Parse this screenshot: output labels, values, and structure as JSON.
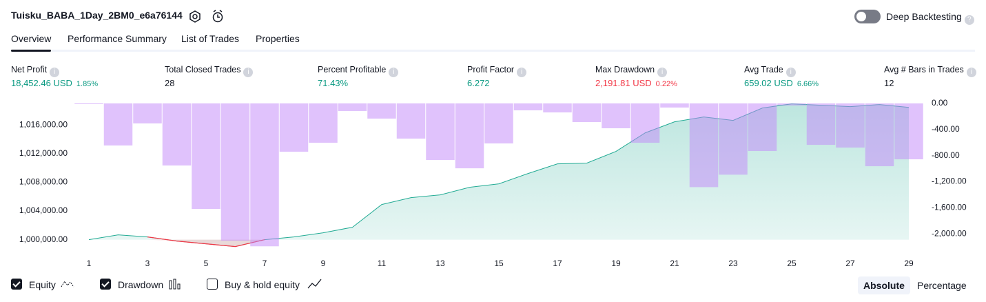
{
  "header": {
    "title": "Tuisku_BABA_1Day_2BM0_e6a76144",
    "deep_backtesting": "Deep Backtesting"
  },
  "tabs": [
    "Overview",
    "Performance Summary",
    "List of Trades",
    "Properties"
  ],
  "metrics": [
    {
      "label": "Net Profit",
      "value": "18,452.46 USD",
      "percent": "1.85%"
    },
    {
      "label": "Total Closed Trades",
      "value": "28"
    },
    {
      "label": "Percent Profitable",
      "value": "71.43%"
    },
    {
      "label": "Profit Factor",
      "value": "6.272"
    },
    {
      "label": "Max Drawdown",
      "value": "2,191.81 USD",
      "percent": "0.22%"
    },
    {
      "label": "Avg Trade",
      "value": "659.02 USD",
      "percent": "6.66%"
    },
    {
      "label": "Avg # Bars in Trades",
      "value": "12"
    }
  ],
  "chart_data": {
    "type": "equity-drawdown",
    "x": [
      1,
      2,
      3,
      4,
      5,
      6,
      7,
      8,
      9,
      10,
      11,
      12,
      13,
      14,
      15,
      16,
      17,
      18,
      19,
      20,
      21,
      22,
      23,
      24,
      25,
      26,
      27,
      28,
      29
    ],
    "xlim": [
      0.5,
      29.5
    ],
    "xticks": [
      1,
      3,
      5,
      7,
      9,
      11,
      13,
      15,
      17,
      19,
      21,
      23,
      25,
      27,
      29
    ],
    "ylim": [
      999000,
      1019000
    ],
    "yticks": [
      {
        "value": 1000000,
        "label": "1,000,000.00"
      },
      {
        "value": 1004000,
        "label": "1,004,000.00"
      },
      {
        "value": 1008000,
        "label": "1,008,000.00"
      },
      {
        "value": 1012000,
        "label": "1,012,000.00"
      },
      {
        "value": 1016000,
        "label": "1,016,000.00"
      }
    ],
    "y2lim": [
      -2200,
      0
    ],
    "y2ticks": [
      {
        "value": 0,
        "label": "0.00"
      },
      {
        "value": -400,
        "label": "-400.00"
      },
      {
        "value": -800,
        "label": "-800.00"
      },
      {
        "value": -1200,
        "label": "-1,200.00"
      },
      {
        "value": -1600,
        "label": "-1,600.00"
      },
      {
        "value": -2000,
        "label": "-2,000.00"
      }
    ],
    "series": [
      {
        "name": "Equity",
        "checked": true,
        "color": "#22ab94",
        "negative_color": "#f23645",
        "values": [
          1000000,
          1000673,
          1000385,
          999808,
          999423,
          999038,
          1000000,
          1000385,
          1000962,
          1001731,
          1004904,
          1005865,
          1006250,
          1007308,
          1007788,
          1009231,
          1010577,
          1010673,
          1012308,
          1014904,
          1016442,
          1017115,
          1016635,
          1018365,
          1018942,
          1018750,
          1018558,
          1018846,
          1018452
        ]
      },
      {
        "name": "Drawdown",
        "checked": true,
        "color": "#c185f9",
        "axis": "y2",
        "values": [
          -10,
          -645,
          -307,
          -952,
          -1619,
          -2106,
          -2192,
          -741,
          -603,
          -116,
          -233,
          -540,
          -868,
          -995,
          -614,
          -106,
          -138,
          -286,
          -381,
          -603,
          -63,
          -1284,
          -1093,
          -730,
          -32,
          -635,
          -677,
          -963,
          -857
        ]
      }
    ],
    "buy_hold": {
      "name": "Buy & hold equity",
      "checked": false
    }
  },
  "scale_buttons": [
    "Absolute",
    "Percentage"
  ]
}
